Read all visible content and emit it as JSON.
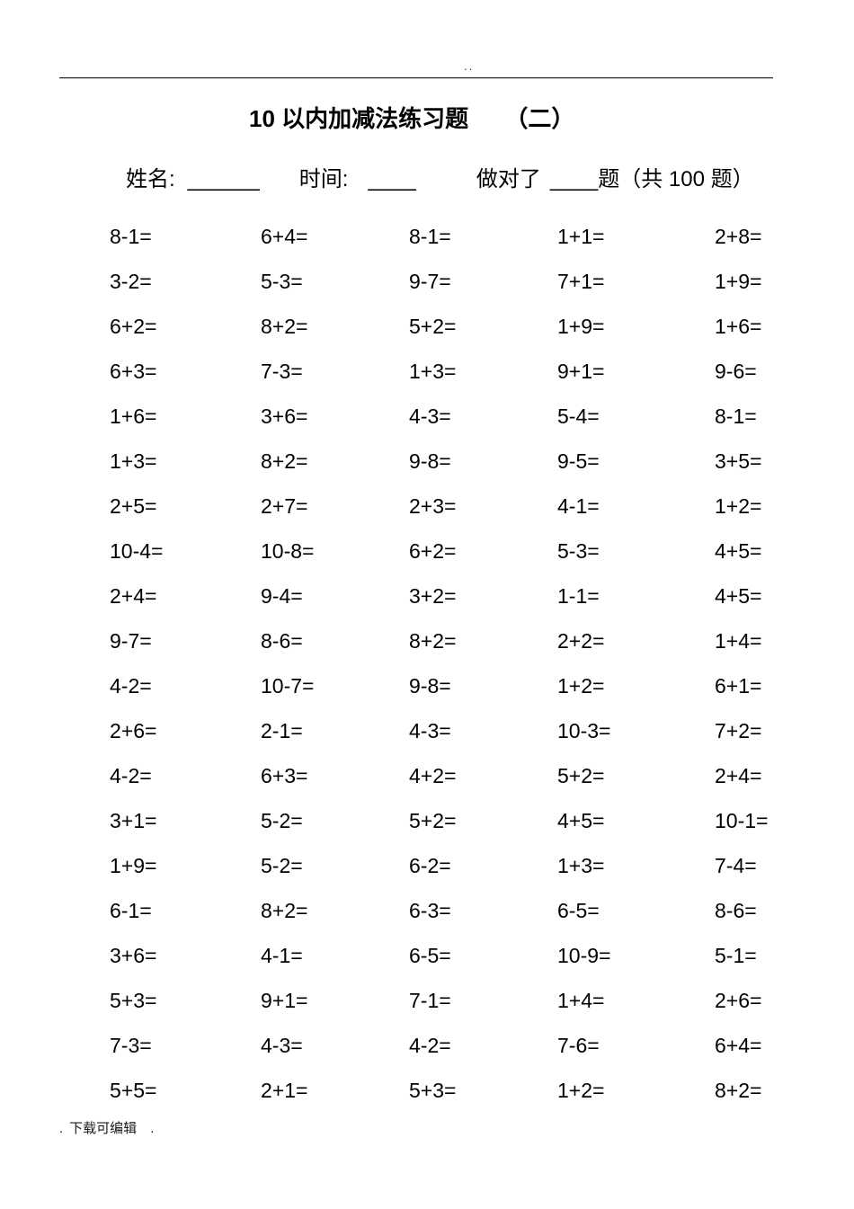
{
  "page": {
    "header_mark": "..",
    "title_main": "10 以内加减法练习题",
    "title_part": "（二）",
    "footer": {
      "dot_left": ".",
      "text": "下载可编辑",
      "dot_right": "."
    }
  },
  "info_line": {
    "name_label": "姓名:",
    "name_blank": "______",
    "time_label": "时间:",
    "time_blank": "____",
    "score_label": "做对了",
    "score_blank": "____",
    "score_suffix": "题（共 100 题）"
  },
  "problems": [
    [
      "8-1=",
      "6+4=",
      "8-1=",
      "1+1=",
      "2+8="
    ],
    [
      "3-2=",
      "5-3=",
      "9-7=",
      "7+1=",
      "1+9="
    ],
    [
      "6+2=",
      "8+2=",
      "5+2=",
      "1+9=",
      "1+6="
    ],
    [
      "6+3=",
      "7-3=",
      "1+3=",
      "9+1=",
      "9-6="
    ],
    [
      "1+6=",
      "3+6=",
      "4-3=",
      "5-4=",
      "8-1="
    ],
    [
      "1+3=",
      "8+2=",
      "9-8=",
      "9-5=",
      "3+5="
    ],
    [
      "2+5=",
      "2+7=",
      "2+3=",
      "4-1=",
      "1+2="
    ],
    [
      "10-4=",
      "10-8=",
      "6+2=",
      "5-3=",
      "4+5="
    ],
    [
      "2+4=",
      "9-4=",
      "3+2=",
      "1-1=",
      "4+5="
    ],
    [
      "9-7=",
      "8-6=",
      "8+2=",
      "2+2=",
      "1+4="
    ],
    [
      "4-2=",
      "10-7=",
      "9-8=",
      "1+2=",
      "6+1="
    ],
    [
      "2+6=",
      "2-1=",
      "4-3=",
      "10-3=",
      "7+2="
    ],
    [
      "4-2=",
      "6+3=",
      "4+2=",
      "5+2=",
      "2+4="
    ],
    [
      "3+1=",
      "5-2=",
      "5+2=",
      "4+5=",
      "10-1="
    ],
    [
      "1+9=",
      "5-2=",
      "6-2=",
      "1+3=",
      "7-4="
    ],
    [
      "6-1=",
      "8+2=",
      "6-3=",
      "6-5=",
      "8-6="
    ],
    [
      "3+6=",
      "4-1=",
      "6-5=",
      "10-9=",
      "5-1="
    ],
    [
      "5+3=",
      "9+1=",
      "7-1=",
      "1+4=",
      "2+6="
    ],
    [
      "7-3=",
      "4-3=",
      "4-2=",
      "7-6=",
      "6+4="
    ],
    [
      "5+5=",
      "2+1=",
      "5+3=",
      "1+2=",
      "8+2="
    ]
  ]
}
